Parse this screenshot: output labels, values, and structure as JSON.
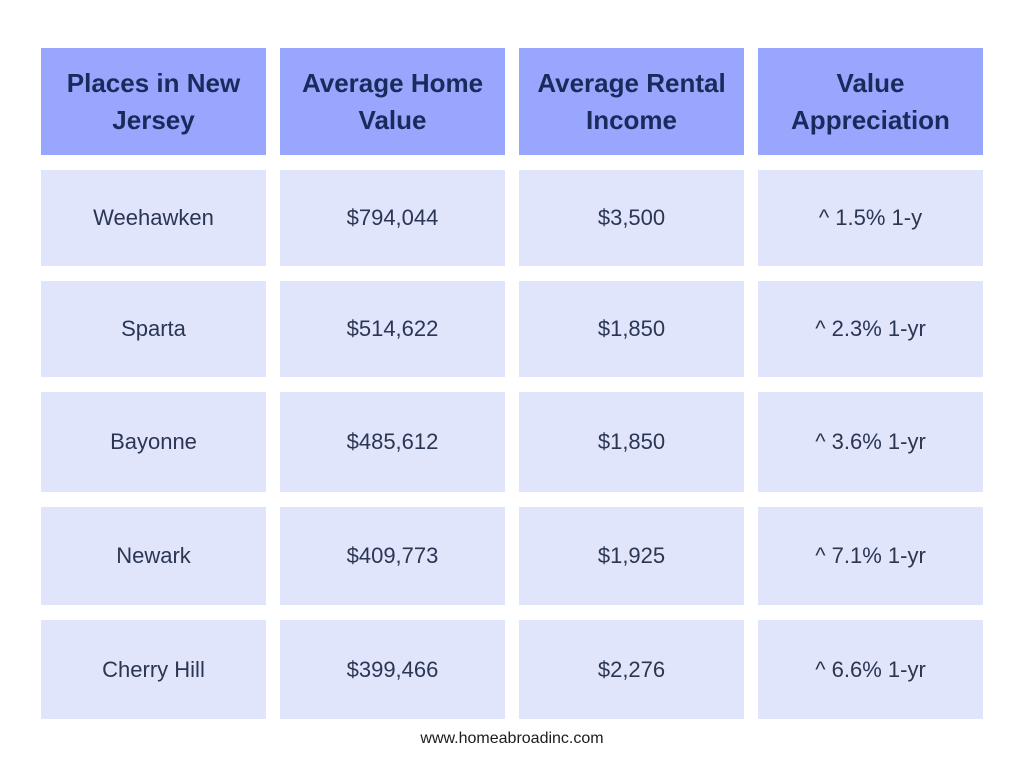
{
  "table": {
    "columns": [
      "Places in New Jersey",
      "Average Home Value",
      "Average Rental Income",
      "Value Appreciation"
    ],
    "rows": [
      [
        "Weehawken",
        "$794,044",
        "$3,500",
        "^ 1.5% 1-y"
      ],
      [
        "Sparta",
        "$514,622",
        "$1,850",
        "^ 2.3% 1-yr"
      ],
      [
        "Bayonne",
        "$485,612",
        "$1,850",
        "^ 3.6% 1-yr"
      ],
      [
        "Newark",
        "$409,773",
        "$1,925",
        "^ 7.1% 1-yr"
      ],
      [
        "Cherry Hill",
        "$399,466",
        "$2,276",
        "^ 6.6% 1-yr"
      ]
    ]
  },
  "footer": {
    "website": "www.homeabroadinc.com"
  },
  "colors": {
    "header_bg": "#98a7fd",
    "header_text": "#1a2a5c",
    "cell_bg": "#e1e5fc",
    "cell_text": "#2a3652"
  }
}
